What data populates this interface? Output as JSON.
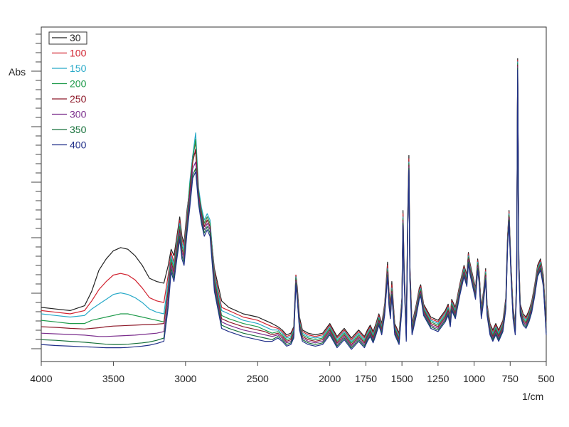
{
  "chart_data": {
    "type": "line",
    "title": "",
    "xlabel": "1/cm",
    "ylabel": "Abs",
    "xlim": [
      4000,
      500
    ],
    "x_reversed": true,
    "ylim": [
      0,
      1
    ],
    "y_tick_labels_shown": false,
    "x_ticks": [
      4000,
      3500,
      3000,
      2500,
      2000,
      1750,
      1500,
      1250,
      1000,
      750,
      500
    ],
    "x_tick_labels": [
      "4000",
      "3500",
      "3000",
      "2500",
      "2000",
      "1750",
      "1500",
      "1250",
      "1000",
      "750",
      "500"
    ],
    "grid": false,
    "legend_position": "top-left",
    "x": [
      4000,
      3900,
      3800,
      3700,
      3650,
      3600,
      3550,
      3500,
      3450,
      3400,
      3350,
      3300,
      3250,
      3200,
      3150,
      3120,
      3100,
      3080,
      3060,
      3040,
      3025,
      3010,
      2990,
      2970,
      2950,
      2930,
      2910,
      2890,
      2870,
      2850,
      2830,
      2800,
      2750,
      2700,
      2600,
      2500,
      2450,
      2400,
      2360,
      2330,
      2300,
      2270,
      2250,
      2235,
      2225,
      2210,
      2190,
      2150,
      2100,
      2050,
      2000,
      1950,
      1900,
      1850,
      1800,
      1760,
      1740,
      1720,
      1700,
      1680,
      1660,
      1640,
      1620,
      1600,
      1590,
      1580,
      1570,
      1550,
      1520,
      1500,
      1493,
      1485,
      1470,
      1460,
      1452,
      1445,
      1430,
      1420,
      1400,
      1380,
      1370,
      1350,
      1300,
      1250,
      1200,
      1180,
      1165,
      1155,
      1130,
      1100,
      1070,
      1050,
      1040,
      1030,
      1010,
      990,
      975,
      965,
      950,
      935,
      920,
      910,
      890,
      870,
      850,
      830,
      800,
      780,
      768,
      758,
      745,
      730,
      715,
      705,
      698,
      690,
      680,
      660,
      640,
      620,
      600,
      580,
      560,
      540,
      520,
      500
    ],
    "series": [
      {
        "name": "30",
        "color": "#222222",
        "values": [
          0.15,
          0.145,
          0.14,
          0.155,
          0.2,
          0.265,
          0.3,
          0.325,
          0.335,
          0.33,
          0.31,
          0.28,
          0.24,
          0.23,
          0.225,
          0.28,
          0.33,
          0.31,
          0.37,
          0.43,
          0.37,
          0.35,
          0.45,
          0.52,
          0.62,
          0.63,
          0.5,
          0.44,
          0.4,
          0.42,
          0.4,
          0.27,
          0.17,
          0.15,
          0.13,
          0.12,
          0.11,
          0.1,
          0.09,
          0.08,
          0.065,
          0.07,
          0.09,
          0.25,
          0.21,
          0.12,
          0.08,
          0.07,
          0.065,
          0.07,
          0.1,
          0.06,
          0.085,
          0.055,
          0.08,
          0.06,
          0.08,
          0.095,
          0.075,
          0.1,
          0.13,
          0.1,
          0.16,
          0.29,
          0.2,
          0.16,
          0.23,
          0.1,
          0.07,
          0.18,
          0.45,
          0.28,
          0.08,
          0.44,
          0.62,
          0.28,
          0.1,
          0.12,
          0.16,
          0.21,
          0.22,
          0.16,
          0.12,
          0.11,
          0.14,
          0.16,
          0.125,
          0.175,
          0.15,
          0.22,
          0.28,
          0.25,
          0.32,
          0.29,
          0.25,
          0.21,
          0.3,
          0.26,
          0.15,
          0.2,
          0.27,
          0.16,
          0.1,
          0.08,
          0.1,
          0.08,
          0.11,
          0.18,
          0.37,
          0.45,
          0.29,
          0.15,
          0.1,
          0.25,
          0.92,
          0.3,
          0.16,
          0.13,
          0.12,
          0.14,
          0.17,
          0.22,
          0.28,
          0.3,
          0.25,
          0.1
        ]
      },
      {
        "name": "100",
        "color": "#d1222f",
        "values": [
          0.14,
          0.135,
          0.13,
          0.14,
          0.17,
          0.205,
          0.23,
          0.25,
          0.255,
          0.25,
          0.235,
          0.21,
          0.18,
          0.17,
          0.165,
          0.25,
          0.32,
          0.29,
          0.36,
          0.42,
          0.36,
          0.34,
          0.44,
          0.53,
          0.62,
          0.66,
          0.51,
          0.45,
          0.41,
          0.43,
          0.41,
          0.26,
          0.15,
          0.14,
          0.12,
          0.11,
          0.1,
          0.09,
          0.085,
          0.075,
          0.06,
          0.065,
          0.085,
          0.25,
          0.2,
          0.11,
          0.075,
          0.065,
          0.06,
          0.065,
          0.095,
          0.055,
          0.08,
          0.05,
          0.075,
          0.055,
          0.075,
          0.09,
          0.07,
          0.095,
          0.125,
          0.095,
          0.155,
          0.28,
          0.19,
          0.15,
          0.22,
          0.095,
          0.065,
          0.175,
          0.44,
          0.27,
          0.075,
          0.43,
          0.61,
          0.27,
          0.095,
          0.115,
          0.155,
          0.205,
          0.215,
          0.155,
          0.115,
          0.105,
          0.135,
          0.155,
          0.12,
          0.17,
          0.145,
          0.215,
          0.275,
          0.245,
          0.315,
          0.285,
          0.245,
          0.205,
          0.295,
          0.255,
          0.145,
          0.195,
          0.265,
          0.155,
          0.095,
          0.075,
          0.095,
          0.075,
          0.105,
          0.175,
          0.365,
          0.445,
          0.285,
          0.145,
          0.095,
          0.245,
          0.915,
          0.295,
          0.155,
          0.125,
          0.115,
          0.135,
          0.165,
          0.215,
          0.275,
          0.295,
          0.245,
          0.095
        ]
      },
      {
        "name": "150",
        "color": "#27a9c8",
        "values": [
          0.13,
          0.125,
          0.12,
          0.125,
          0.145,
          0.16,
          0.175,
          0.19,
          0.195,
          0.19,
          0.18,
          0.165,
          0.145,
          0.135,
          0.13,
          0.23,
          0.31,
          0.28,
          0.35,
          0.41,
          0.35,
          0.33,
          0.43,
          0.54,
          0.62,
          0.69,
          0.52,
          0.46,
          0.42,
          0.44,
          0.42,
          0.25,
          0.14,
          0.13,
          0.11,
          0.1,
          0.09,
          0.08,
          0.08,
          0.07,
          0.055,
          0.06,
          0.08,
          0.245,
          0.195,
          0.105,
          0.07,
          0.06,
          0.055,
          0.06,
          0.09,
          0.05,
          0.075,
          0.045,
          0.07,
          0.05,
          0.07,
          0.085,
          0.065,
          0.09,
          0.12,
          0.09,
          0.15,
          0.27,
          0.18,
          0.14,
          0.21,
          0.09,
          0.06,
          0.17,
          0.43,
          0.26,
          0.07,
          0.42,
          0.6,
          0.26,
          0.09,
          0.11,
          0.15,
          0.2,
          0.21,
          0.15,
          0.11,
          0.1,
          0.13,
          0.15,
          0.115,
          0.165,
          0.14,
          0.21,
          0.27,
          0.24,
          0.31,
          0.28,
          0.24,
          0.2,
          0.29,
          0.25,
          0.14,
          0.19,
          0.26,
          0.15,
          0.09,
          0.07,
          0.09,
          0.07,
          0.1,
          0.17,
          0.36,
          0.44,
          0.28,
          0.14,
          0.09,
          0.24,
          0.91,
          0.29,
          0.15,
          0.12,
          0.11,
          0.13,
          0.16,
          0.21,
          0.27,
          0.29,
          0.24,
          0.09
        ]
      },
      {
        "name": "200",
        "color": "#1e9a4a",
        "values": [
          0.11,
          0.105,
          0.1,
          0.1,
          0.11,
          0.115,
          0.12,
          0.125,
          0.13,
          0.13,
          0.125,
          0.12,
          0.115,
          0.11,
          0.105,
          0.21,
          0.3,
          0.27,
          0.34,
          0.4,
          0.34,
          0.32,
          0.42,
          0.53,
          0.61,
          0.67,
          0.51,
          0.45,
          0.41,
          0.43,
          0.41,
          0.24,
          0.125,
          0.115,
          0.1,
          0.09,
          0.08,
          0.07,
          0.075,
          0.065,
          0.05,
          0.055,
          0.075,
          0.24,
          0.19,
          0.1,
          0.065,
          0.055,
          0.05,
          0.055,
          0.085,
          0.045,
          0.07,
          0.04,
          0.065,
          0.045,
          0.065,
          0.08,
          0.06,
          0.085,
          0.115,
          0.085,
          0.145,
          0.265,
          0.175,
          0.135,
          0.205,
          0.085,
          0.055,
          0.165,
          0.425,
          0.255,
          0.065,
          0.415,
          0.595,
          0.255,
          0.085,
          0.105,
          0.145,
          0.195,
          0.205,
          0.145,
          0.105,
          0.095,
          0.125,
          0.145,
          0.11,
          0.16,
          0.135,
          0.205,
          0.265,
          0.235,
          0.305,
          0.275,
          0.235,
          0.195,
          0.285,
          0.245,
          0.135,
          0.185,
          0.255,
          0.145,
          0.085,
          0.065,
          0.085,
          0.065,
          0.095,
          0.165,
          0.355,
          0.435,
          0.275,
          0.135,
          0.085,
          0.235,
          0.905,
          0.285,
          0.145,
          0.115,
          0.105,
          0.125,
          0.155,
          0.205,
          0.265,
          0.285,
          0.235,
          0.085
        ]
      },
      {
        "name": "250",
        "color": "#8e1a2a",
        "values": [
          0.09,
          0.088,
          0.085,
          0.083,
          0.085,
          0.087,
          0.09,
          0.092,
          0.093,
          0.094,
          0.095,
          0.096,
          0.097,
          0.098,
          0.1,
          0.2,
          0.29,
          0.26,
          0.33,
          0.39,
          0.33,
          0.31,
          0.41,
          0.51,
          0.6,
          0.64,
          0.5,
          0.44,
          0.4,
          0.42,
          0.4,
          0.23,
          0.115,
          0.105,
          0.09,
          0.08,
          0.075,
          0.065,
          0.07,
          0.06,
          0.045,
          0.05,
          0.07,
          0.235,
          0.185,
          0.095,
          0.06,
          0.05,
          0.045,
          0.05,
          0.08,
          0.04,
          0.065,
          0.035,
          0.06,
          0.04,
          0.06,
          0.075,
          0.055,
          0.08,
          0.11,
          0.08,
          0.14,
          0.26,
          0.17,
          0.13,
          0.2,
          0.08,
          0.05,
          0.16,
          0.42,
          0.25,
          0.06,
          0.41,
          0.59,
          0.25,
          0.08,
          0.1,
          0.14,
          0.19,
          0.2,
          0.14,
          0.1,
          0.09,
          0.12,
          0.14,
          0.105,
          0.155,
          0.13,
          0.2,
          0.26,
          0.23,
          0.3,
          0.27,
          0.23,
          0.19,
          0.28,
          0.24,
          0.13,
          0.18,
          0.25,
          0.14,
          0.08,
          0.06,
          0.08,
          0.06,
          0.09,
          0.16,
          0.35,
          0.43,
          0.27,
          0.13,
          0.08,
          0.23,
          0.9,
          0.28,
          0.14,
          0.11,
          0.1,
          0.12,
          0.15,
          0.2,
          0.26,
          0.28,
          0.23,
          0.08
        ]
      },
      {
        "name": "300",
        "color": "#7a2d8c",
        "values": [
          0.07,
          0.068,
          0.066,
          0.064,
          0.062,
          0.06,
          0.06,
          0.061,
          0.062,
          0.063,
          0.064,
          0.066,
          0.068,
          0.07,
          0.075,
          0.18,
          0.28,
          0.25,
          0.32,
          0.38,
          0.32,
          0.3,
          0.4,
          0.49,
          0.58,
          0.6,
          0.49,
          0.43,
          0.39,
          0.41,
          0.39,
          0.22,
          0.105,
          0.095,
          0.08,
          0.07,
          0.065,
          0.06,
          0.065,
          0.055,
          0.04,
          0.045,
          0.065,
          0.23,
          0.18,
          0.09,
          0.055,
          0.045,
          0.04,
          0.045,
          0.075,
          0.035,
          0.06,
          0.03,
          0.055,
          0.035,
          0.055,
          0.07,
          0.05,
          0.075,
          0.105,
          0.075,
          0.135,
          0.255,
          0.165,
          0.125,
          0.195,
          0.075,
          0.045,
          0.155,
          0.415,
          0.245,
          0.055,
          0.405,
          0.585,
          0.245,
          0.075,
          0.095,
          0.135,
          0.185,
          0.195,
          0.135,
          0.095,
          0.085,
          0.115,
          0.135,
          0.1,
          0.15,
          0.125,
          0.195,
          0.255,
          0.225,
          0.295,
          0.265,
          0.225,
          0.185,
          0.275,
          0.235,
          0.125,
          0.175,
          0.245,
          0.135,
          0.075,
          0.055,
          0.075,
          0.055,
          0.085,
          0.155,
          0.345,
          0.425,
          0.265,
          0.125,
          0.075,
          0.225,
          0.895,
          0.275,
          0.135,
          0.105,
          0.095,
          0.115,
          0.145,
          0.195,
          0.255,
          0.275,
          0.225,
          0.075
        ]
      },
      {
        "name": "350",
        "color": "#16703a",
        "values": [
          0.05,
          0.048,
          0.045,
          0.042,
          0.04,
          0.038,
          0.036,
          0.035,
          0.035,
          0.036,
          0.038,
          0.04,
          0.043,
          0.048,
          0.055,
          0.16,
          0.27,
          0.24,
          0.31,
          0.37,
          0.31,
          0.29,
          0.39,
          0.47,
          0.56,
          0.58,
          0.48,
          0.42,
          0.38,
          0.4,
          0.38,
          0.21,
          0.095,
          0.085,
          0.07,
          0.06,
          0.055,
          0.05,
          0.06,
          0.05,
          0.035,
          0.04,
          0.06,
          0.225,
          0.175,
          0.085,
          0.05,
          0.04,
          0.035,
          0.04,
          0.07,
          0.03,
          0.055,
          0.025,
          0.05,
          0.03,
          0.05,
          0.065,
          0.045,
          0.07,
          0.1,
          0.07,
          0.13,
          0.25,
          0.16,
          0.12,
          0.19,
          0.07,
          0.04,
          0.15,
          0.41,
          0.24,
          0.05,
          0.4,
          0.58,
          0.24,
          0.07,
          0.09,
          0.13,
          0.18,
          0.19,
          0.13,
          0.09,
          0.08,
          0.11,
          0.13,
          0.095,
          0.145,
          0.12,
          0.19,
          0.25,
          0.22,
          0.29,
          0.26,
          0.22,
          0.18,
          0.27,
          0.23,
          0.12,
          0.17,
          0.24,
          0.13,
          0.07,
          0.05,
          0.07,
          0.05,
          0.08,
          0.15,
          0.34,
          0.42,
          0.26,
          0.12,
          0.07,
          0.22,
          0.89,
          0.27,
          0.13,
          0.1,
          0.09,
          0.11,
          0.14,
          0.19,
          0.25,
          0.27,
          0.22,
          0.07
        ]
      },
      {
        "name": "400",
        "color": "#22308a",
        "values": [
          0.035,
          0.032,
          0.03,
          0.028,
          0.027,
          0.026,
          0.025,
          0.025,
          0.025,
          0.026,
          0.028,
          0.03,
          0.033,
          0.038,
          0.045,
          0.15,
          0.26,
          0.23,
          0.3,
          0.36,
          0.3,
          0.28,
          0.38,
          0.46,
          0.55,
          0.57,
          0.47,
          0.41,
          0.37,
          0.39,
          0.37,
          0.2,
          0.085,
          0.075,
          0.06,
          0.05,
          0.045,
          0.045,
          0.055,
          0.045,
          0.03,
          0.035,
          0.055,
          0.22,
          0.17,
          0.08,
          0.045,
          0.035,
          0.03,
          0.035,
          0.065,
          0.025,
          0.05,
          0.02,
          0.045,
          0.025,
          0.045,
          0.06,
          0.04,
          0.065,
          0.095,
          0.065,
          0.125,
          0.245,
          0.155,
          0.115,
          0.185,
          0.065,
          0.035,
          0.145,
          0.405,
          0.235,
          0.045,
          0.395,
          0.575,
          0.235,
          0.065,
          0.085,
          0.125,
          0.175,
          0.185,
          0.125,
          0.085,
          0.075,
          0.105,
          0.125,
          0.09,
          0.14,
          0.115,
          0.185,
          0.245,
          0.215,
          0.285,
          0.255,
          0.215,
          0.175,
          0.265,
          0.225,
          0.115,
          0.165,
          0.235,
          0.125,
          0.065,
          0.045,
          0.065,
          0.045,
          0.075,
          0.145,
          0.335,
          0.415,
          0.255,
          0.115,
          0.065,
          0.215,
          0.885,
          0.265,
          0.125,
          0.095,
          0.085,
          0.105,
          0.135,
          0.185,
          0.245,
          0.265,
          0.215,
          0.065
        ]
      }
    ]
  }
}
